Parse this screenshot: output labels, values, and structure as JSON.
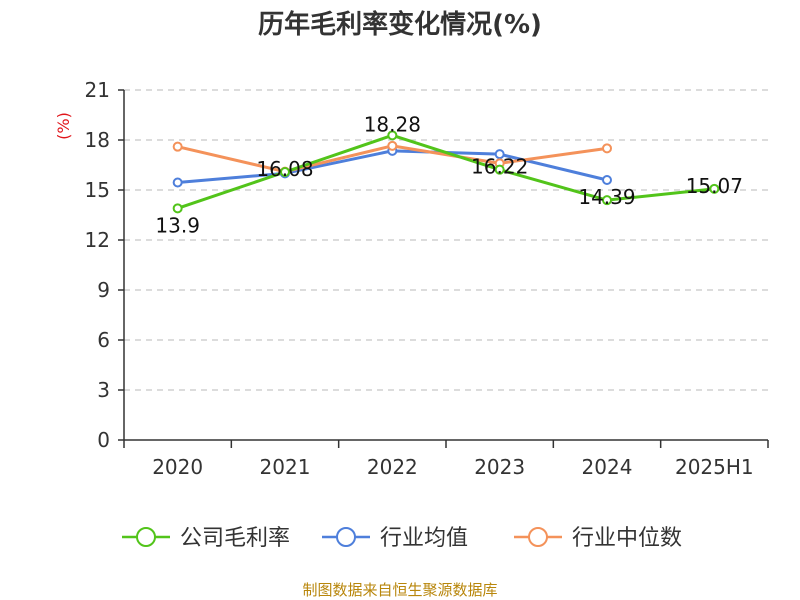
{
  "chart_data": {
    "type": "line",
    "title": "历年毛利率变化情况(%)",
    "ylabel": "(%)",
    "xlabel": "",
    "categories": [
      "2020",
      "2021",
      "2022",
      "2023",
      "2024",
      "2025H1"
    ],
    "ylim": [
      0,
      21
    ],
    "yticks": [
      0,
      3,
      6,
      9,
      12,
      15,
      18,
      21
    ],
    "grid": true,
    "legend_position": "bottom",
    "series": [
      {
        "name": "公司毛利率",
        "color": "#52c41a",
        "values": [
          13.9,
          16.08,
          18.28,
          16.22,
          14.39,
          15.07
        ],
        "labels": [
          "13.9",
          "16.08",
          "18.28",
          "16.22",
          "14.39",
          "15.07"
        ]
      },
      {
        "name": "行业均值",
        "color": "#4e7fdb",
        "values": [
          15.45,
          16.0,
          17.35,
          17.15,
          15.6,
          null
        ]
      },
      {
        "name": "行业中位数",
        "color": "#f4925a",
        "values": [
          17.6,
          16.1,
          17.65,
          16.6,
          17.5,
          null
        ]
      }
    ]
  },
  "source": "制图数据来自恒生聚源数据库"
}
